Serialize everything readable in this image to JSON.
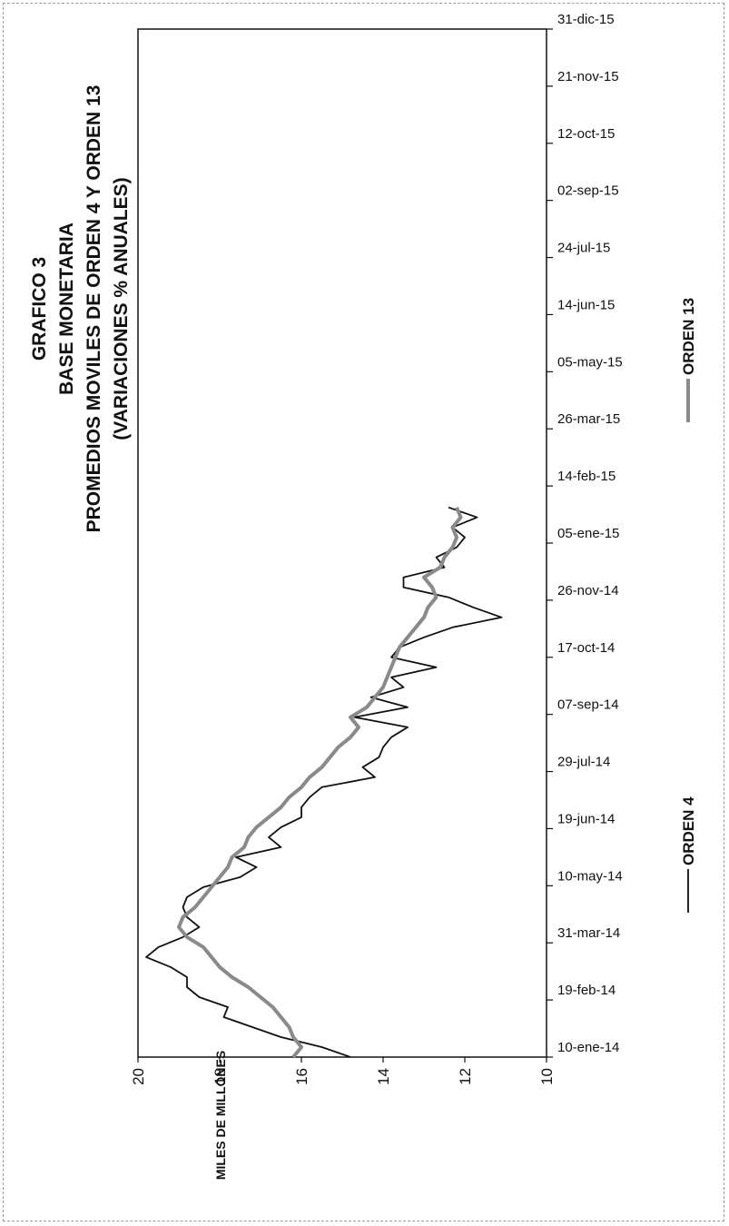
{
  "chart_data": {
    "type": "line",
    "title": "GRAFICO 3",
    "subtitle": [
      "BASE MONETARIA",
      "PROMEDIOS MOVILES DE ORDEN 4 Y ORDEN 13",
      "(VARIACIONES % ANUALES)"
    ],
    "ylabel": "MILES DE MILLONES",
    "ylim": [
      10,
      20
    ],
    "yticks": [
      "20",
      "18",
      "16",
      "14",
      "12",
      "10"
    ],
    "xlim": [
      "2014-01-10",
      "2015-12-31"
    ],
    "xticks": [
      {
        "date": "2014-01-10",
        "label": "10-ene-14"
      },
      {
        "date": "2014-02-19",
        "label": "19-feb-14"
      },
      {
        "date": "2014-03-31",
        "label": "31-mar-14"
      },
      {
        "date": "2014-05-10",
        "label": "10-may-14"
      },
      {
        "date": "2014-06-19",
        "label": "19-jun-14"
      },
      {
        "date": "2014-07-29",
        "label": "29-jul-14"
      },
      {
        "date": "2014-09-07",
        "label": "07-sep-14"
      },
      {
        "date": "2014-10-17",
        "label": "17-oct-14"
      },
      {
        "date": "2014-11-26",
        "label": "26-nov-14"
      },
      {
        "date": "2015-01-05",
        "label": "05-ene-15"
      },
      {
        "date": "2015-02-14",
        "label": "14-feb-15"
      },
      {
        "date": "2015-03-26",
        "label": "26-mar-15"
      },
      {
        "date": "2015-05-05",
        "label": "05-may-15"
      },
      {
        "date": "2015-06-14",
        "label": "14-jun-15"
      },
      {
        "date": "2015-07-24",
        "label": "24-jul-15"
      },
      {
        "date": "2015-09-02",
        "label": "02-sep-15"
      },
      {
        "date": "2015-10-12",
        "label": "12-oct-15"
      },
      {
        "date": "2015-11-21",
        "label": "21-nov-15"
      },
      {
        "date": "2015-12-31",
        "label": "31-dic-15"
      }
    ],
    "legend": {
      "placement": "bottom"
    },
    "series": [
      {
        "name": "ORDEN 4",
        "color": "#111111",
        "x": [
          "2014-01-10",
          "2014-01-17",
          "2014-01-24",
          "2014-01-31",
          "2014-02-07",
          "2014-02-14",
          "2014-02-21",
          "2014-02-28",
          "2014-03-07",
          "2014-03-14",
          "2014-03-21",
          "2014-03-28",
          "2014-04-04",
          "2014-04-11",
          "2014-04-18",
          "2014-04-25",
          "2014-05-02",
          "2014-05-09",
          "2014-05-16",
          "2014-05-23",
          "2014-05-30",
          "2014-06-06",
          "2014-06-13",
          "2014-06-20",
          "2014-06-27",
          "2014-07-04",
          "2014-07-11",
          "2014-07-18",
          "2014-07-25",
          "2014-08-01",
          "2014-08-08",
          "2014-08-15",
          "2014-08-22",
          "2014-08-29",
          "2014-09-05",
          "2014-09-12",
          "2014-09-19",
          "2014-09-26",
          "2014-10-03",
          "2014-10-10",
          "2014-10-17",
          "2014-10-24",
          "2014-10-31",
          "2014-11-07",
          "2014-11-14",
          "2014-11-21",
          "2014-11-28",
          "2014-12-05",
          "2014-12-12",
          "2014-12-19",
          "2014-12-26",
          "2015-01-02",
          "2015-01-09",
          "2015-01-16",
          "2015-01-23",
          "2015-01-30"
        ],
        "y": [
          14.8,
          15.5,
          16.5,
          17.2,
          17.9,
          17.8,
          18.5,
          18.8,
          18.8,
          19.2,
          19.8,
          19.5,
          18.9,
          18.5,
          18.8,
          18.9,
          18.8,
          18.4,
          17.5,
          17.1,
          17.6,
          16.5,
          16.8,
          16.5,
          16.0,
          16.0,
          15.8,
          15.5,
          14.2,
          14.5,
          14.1,
          14.0,
          13.8,
          13.4,
          14.7,
          13.4,
          14.3,
          13.5,
          13.8,
          12.7,
          13.8,
          13.6,
          13.0,
          12.3,
          11.1,
          11.8,
          12.4,
          13.5,
          13.5,
          12.5,
          12.7,
          12.2,
          12.0,
          12.3,
          11.7,
          12.4
        ]
      },
      {
        "name": "ORDEN 13",
        "color": "#8a8a8a",
        "x": [
          "2014-01-10",
          "2014-01-17",
          "2014-01-24",
          "2014-01-31",
          "2014-02-07",
          "2014-02-14",
          "2014-02-21",
          "2014-02-28",
          "2014-03-07",
          "2014-03-14",
          "2014-03-21",
          "2014-03-28",
          "2014-04-04",
          "2014-04-11",
          "2014-04-18",
          "2014-04-25",
          "2014-05-02",
          "2014-05-09",
          "2014-05-16",
          "2014-05-23",
          "2014-05-30",
          "2014-06-06",
          "2014-06-13",
          "2014-06-20",
          "2014-06-27",
          "2014-07-04",
          "2014-07-11",
          "2014-07-18",
          "2014-07-25",
          "2014-08-01",
          "2014-08-08",
          "2014-08-15",
          "2014-08-22",
          "2014-08-29",
          "2014-09-05",
          "2014-09-12",
          "2014-09-19",
          "2014-09-26",
          "2014-10-03",
          "2014-10-10",
          "2014-10-17",
          "2014-10-24",
          "2014-10-31",
          "2014-11-07",
          "2014-11-14",
          "2014-11-21",
          "2014-11-28",
          "2014-12-05",
          "2014-12-12",
          "2014-12-19",
          "2014-12-26",
          "2015-01-02",
          "2015-01-09",
          "2015-01-16",
          "2015-01-23",
          "2015-01-30"
        ],
        "y": [
          16.2,
          16.0,
          16.2,
          16.3,
          16.5,
          16.7,
          17.0,
          17.3,
          17.7,
          18.0,
          18.2,
          18.4,
          18.8,
          19.0,
          18.9,
          18.6,
          18.4,
          18.2,
          18.0,
          17.8,
          17.7,
          17.4,
          17.3,
          17.1,
          16.8,
          16.5,
          16.3,
          16.0,
          15.8,
          15.5,
          15.3,
          15.1,
          14.8,
          14.6,
          14.8,
          14.4,
          14.2,
          14.0,
          13.9,
          13.8,
          13.7,
          13.6,
          13.4,
          13.2,
          13.0,
          12.9,
          12.7,
          12.8,
          13.0,
          12.6,
          12.5,
          12.3,
          12.2,
          12.3,
          12.1,
          12.2
        ]
      }
    ]
  }
}
